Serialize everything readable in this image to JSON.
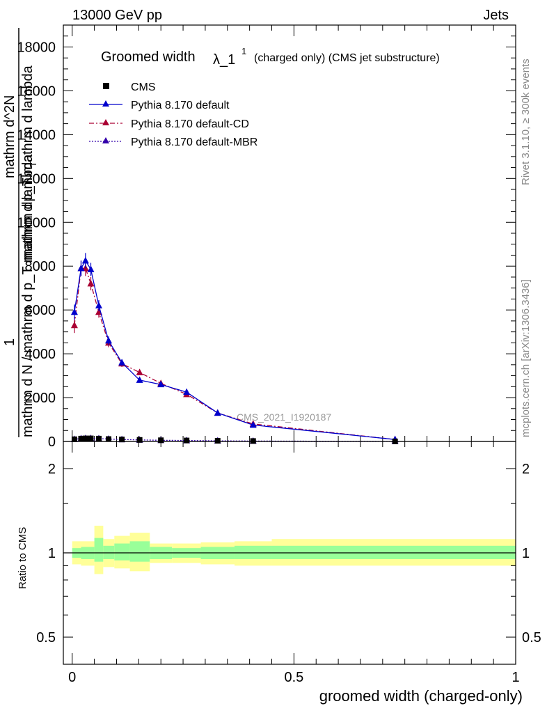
{
  "header": {
    "left": "13000 GeV pp",
    "right": "Jets"
  },
  "side_labels": {
    "rivet": "Rivet 3.1.10, ≥ 300k events",
    "mcplots": "mcplots.cern.ch [arXiv:1306.3436]"
  },
  "title": {
    "main": "Groomed width",
    "lambda": "λ_1",
    "sup": "1",
    "rest": "(charged only) (CMS jet substructure)"
  },
  "ylabel_lines": [
    "1",
    "mathrm d N / mathrm d p_T mathrm d lambda",
    "mathrm d^2N",
    "mathrm dp_T mathrm d lambda"
  ],
  "ylabel_T": "T",
  "ratio_ylabel": "Ratio to CMS",
  "xlabel": "groomed width (charged-only)",
  "watermark": "CMS_2021_I1920187",
  "legend": [
    {
      "name": "CMS",
      "color": "#000000",
      "style": "marker"
    },
    {
      "name": "Pythia 8.170 default",
      "color": "#0000cc",
      "style": "solid"
    },
    {
      "name": "Pythia 8.170 default-CD",
      "color": "#aa0033",
      "style": "dashdot"
    },
    {
      "name": "Pythia 8.170 default-MBR",
      "color": "#3300aa",
      "style": "dotted"
    }
  ],
  "chart_data": {
    "type": "line",
    "xlabel": "groomed width (charged-only)",
    "xlim": [
      -0.02,
      1.0
    ],
    "xticks": [
      "0",
      "0.5",
      "1"
    ],
    "ylim": [
      0,
      19000
    ],
    "yticks": [
      "0",
      "2000",
      "4000",
      "6000",
      "8000",
      "10000",
      "12000",
      "14000",
      "16000",
      "18000"
    ],
    "ratio_ylim": [
      0.4,
      2.5
    ],
    "ratio_yticks": [
      "0.5",
      "1",
      "2"
    ],
    "ratio_ytick_values": [
      0.5,
      1,
      2
    ],
    "x": [
      0.005,
      0.02,
      0.03,
      0.042,
      0.06,
      0.082,
      0.112,
      0.152,
      0.2,
      0.258,
      0.328,
      0.408,
      0.728
    ],
    "series": [
      {
        "name": "CMS",
        "color": "#000000",
        "values": [
          100,
          130,
          140,
          140,
          130,
          110,
          90,
          70,
          55,
          45,
          30,
          20,
          4
        ]
      },
      {
        "name": "Pythia 8.170 default",
        "color": "#0000cc",
        "dash": "",
        "values": [
          5900,
          7900,
          8250,
          7850,
          6200,
          4600,
          3600,
          2800,
          2600,
          2250,
          1300,
          750,
          90
        ],
        "errors": [
          350,
          350,
          350,
          300,
          250,
          200,
          150,
          100,
          80,
          70,
          50,
          30,
          10
        ]
      },
      {
        "name": "Pythia 8.170 default-CD",
        "color": "#aa0033",
        "dash": "7,3,2,3",
        "values": [
          5300,
          7900,
          7900,
          7200,
          5900,
          4500,
          3550,
          3150,
          2650,
          2150,
          1300,
          800,
          90
        ],
        "errors": [
          350,
          350,
          350,
          300,
          250,
          200,
          150,
          100,
          80,
          70,
          50,
          30,
          10
        ]
      },
      {
        "name": "Pythia 8.170 default-MBR",
        "color": "#3300aa",
        "dash": "2,2",
        "values": [
          100,
          130,
          140,
          140,
          130,
          110,
          90,
          70,
          55,
          45,
          30,
          20,
          4
        ]
      }
    ],
    "ratio_bands": [
      {
        "x0": 0.0,
        "x1": 0.02,
        "inner": [
          0.96,
          1.04
        ],
        "outer": [
          0.91,
          1.1
        ]
      },
      {
        "x0": 0.02,
        "x1": 0.05,
        "inner": [
          0.95,
          1.05
        ],
        "outer": [
          0.9,
          1.1
        ]
      },
      {
        "x0": 0.05,
        "x1": 0.07,
        "inner": [
          0.93,
          1.13
        ],
        "outer": [
          0.84,
          1.25
        ]
      },
      {
        "x0": 0.07,
        "x1": 0.095,
        "inner": [
          0.95,
          1.06
        ],
        "outer": [
          0.89,
          1.12
        ]
      },
      {
        "x0": 0.095,
        "x1": 0.13,
        "inner": [
          0.94,
          1.08
        ],
        "outer": [
          0.88,
          1.15
        ]
      },
      {
        "x0": 0.13,
        "x1": 0.175,
        "inner": [
          0.93,
          1.1
        ],
        "outer": [
          0.86,
          1.18
        ]
      },
      {
        "x0": 0.175,
        "x1": 0.225,
        "inner": [
          0.95,
          1.05
        ],
        "outer": [
          0.92,
          1.08
        ]
      },
      {
        "x0": 0.225,
        "x1": 0.29,
        "inner": [
          0.96,
          1.04
        ],
        "outer": [
          0.92,
          1.08
        ]
      },
      {
        "x0": 0.29,
        "x1": 0.366,
        "inner": [
          0.95,
          1.05
        ],
        "outer": [
          0.91,
          1.09
        ]
      },
      {
        "x0": 0.366,
        "x1": 0.45,
        "inner": [
          0.95,
          1.06
        ],
        "outer": [
          0.9,
          1.1
        ]
      },
      {
        "x0": 0.45,
        "x1": 1.0,
        "inner": [
          0.95,
          1.06
        ],
        "outer": [
          0.9,
          1.12
        ]
      }
    ]
  }
}
